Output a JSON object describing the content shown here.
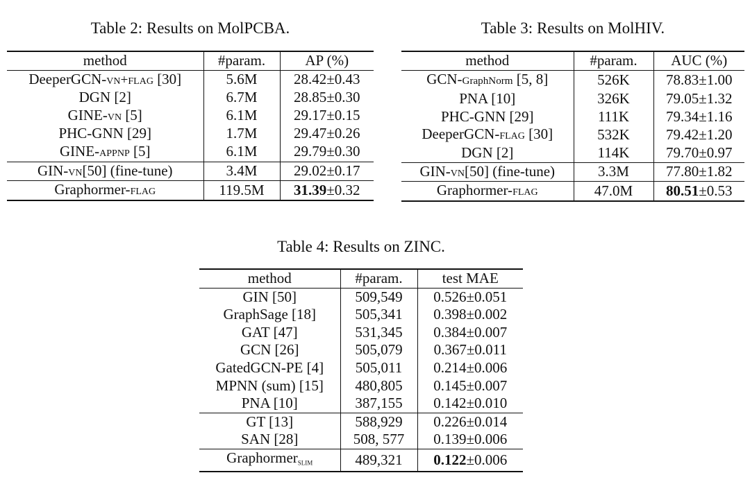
{
  "table2": {
    "caption": "Table 2: Results on MolPCBA.",
    "headers": [
      "method",
      "#param.",
      "AP (%)"
    ],
    "rows": [
      {
        "method_parts": [
          {
            "t": "DeeperGCN-",
            "s": ""
          },
          {
            "t": "vn+flag",
            "s": "sc"
          },
          {
            "t": " [30]",
            "s": ""
          }
        ],
        "param": "5.6M",
        "metric": "28.42±0.43"
      },
      {
        "method_parts": [
          {
            "t": "DGN [2]",
            "s": ""
          }
        ],
        "param": "6.7M",
        "metric": "28.85±0.30"
      },
      {
        "method_parts": [
          {
            "t": "GINE-",
            "s": ""
          },
          {
            "t": "vn",
            "s": "sc"
          },
          {
            "t": " [5]",
            "s": ""
          }
        ],
        "param": "6.1M",
        "metric": "29.17±0.15"
      },
      {
        "method_parts": [
          {
            "t": "PHC-GNN [29]",
            "s": ""
          }
        ],
        "param": "1.7M",
        "metric": "29.47±0.26"
      },
      {
        "method_parts": [
          {
            "t": "GINE-",
            "s": ""
          },
          {
            "t": "appnp",
            "s": "sc"
          },
          {
            "t": " [5]",
            "s": ""
          }
        ],
        "param": "6.1M",
        "metric": "29.79±0.30"
      },
      {
        "method_parts": [
          {
            "t": "GIN-",
            "s": ""
          },
          {
            "t": "vn",
            "s": "sc"
          },
          {
            "t": "[50] (fine-tune)",
            "s": ""
          }
        ],
        "param": "3.4M",
        "metric": "29.02±0.17",
        "divider": true
      },
      {
        "method_parts": [
          {
            "t": "Graphormer-",
            "s": ""
          },
          {
            "t": "flag",
            "s": "sc"
          }
        ],
        "param": "119.5M",
        "metric_bold": "31.39",
        "metric_rest": "±0.32",
        "divider": true
      }
    ]
  },
  "table3": {
    "caption": "Table 3: Results on MolHIV.",
    "headers": [
      "method",
      "#param.",
      "AUC (%)"
    ],
    "rows": [
      {
        "method_parts": [
          {
            "t": "GCN-",
            "s": ""
          },
          {
            "t": "GraphNorm",
            "s": "tiny"
          },
          {
            "t": " [5, 8]",
            "s": ""
          }
        ],
        "param": "526K",
        "metric": "78.83±1.00"
      },
      {
        "method_parts": [
          {
            "t": "PNA [10]",
            "s": ""
          }
        ],
        "param": "326K",
        "metric": "79.05±1.32"
      },
      {
        "method_parts": [
          {
            "t": "PHC-GNN [29]",
            "s": ""
          }
        ],
        "param": "111K",
        "metric": "79.34±1.16"
      },
      {
        "method_parts": [
          {
            "t": "DeeperGCN-",
            "s": ""
          },
          {
            "t": "flag",
            "s": "sc"
          },
          {
            "t": " [30]",
            "s": ""
          }
        ],
        "param": "532K",
        "metric": "79.42±1.20"
      },
      {
        "method_parts": [
          {
            "t": "DGN [2]",
            "s": ""
          }
        ],
        "param": "114K",
        "metric": "79.70±0.97"
      },
      {
        "method_parts": [
          {
            "t": "GIN-",
            "s": ""
          },
          {
            "t": "vn",
            "s": "sc"
          },
          {
            "t": "[50] (fine-tune)",
            "s": ""
          }
        ],
        "param": "3.3M",
        "metric": "77.80±1.82",
        "divider": true
      },
      {
        "method_parts": [
          {
            "t": "Graphormer-",
            "s": ""
          },
          {
            "t": "flag",
            "s": "sc"
          }
        ],
        "param": "47.0M",
        "metric_bold": "80.51",
        "metric_rest": "±0.53",
        "divider": true
      }
    ]
  },
  "table4": {
    "caption": "Table 4: Results on ZINC.",
    "headers": [
      "method",
      "#param.",
      "test MAE"
    ],
    "rows": [
      {
        "method_parts": [
          {
            "t": "GIN [50]",
            "s": ""
          }
        ],
        "param": "509,549",
        "metric": "0.526±0.051"
      },
      {
        "method_parts": [
          {
            "t": "GraphSage [18]",
            "s": ""
          }
        ],
        "param": "505,341",
        "metric": "0.398±0.002"
      },
      {
        "method_parts": [
          {
            "t": "GAT [47]",
            "s": ""
          }
        ],
        "param": "531,345",
        "metric": "0.384±0.007"
      },
      {
        "method_parts": [
          {
            "t": "GCN [26]",
            "s": ""
          }
        ],
        "param": "505,079",
        "metric": "0.367±0.011"
      },
      {
        "method_parts": [
          {
            "t": "GatedGCN-PE [4]",
            "s": ""
          }
        ],
        "param": "505,011",
        "metric": "0.214±0.006"
      },
      {
        "method_parts": [
          {
            "t": "MPNN (sum) [15]",
            "s": ""
          }
        ],
        "param": "480,805",
        "metric": "0.145±0.007"
      },
      {
        "method_parts": [
          {
            "t": "PNA [10]",
            "s": ""
          }
        ],
        "param": "387,155",
        "metric": "0.142±0.010"
      },
      {
        "method_parts": [
          {
            "t": "GT [13]",
            "s": ""
          }
        ],
        "param": "588,929",
        "metric": "0.226±0.014",
        "divider": true
      },
      {
        "method_parts": [
          {
            "t": "SAN [28]",
            "s": ""
          }
        ],
        "param": "508, 577",
        "metric": "0.139±0.006"
      },
      {
        "method_parts": [
          {
            "t": "Graphormer",
            "s": ""
          },
          {
            "t": "slim",
            "s": "subsc"
          }
        ],
        "param": "489,321",
        "metric_bold": "0.122",
        "metric_rest": "±0.006",
        "divider": true
      }
    ]
  }
}
